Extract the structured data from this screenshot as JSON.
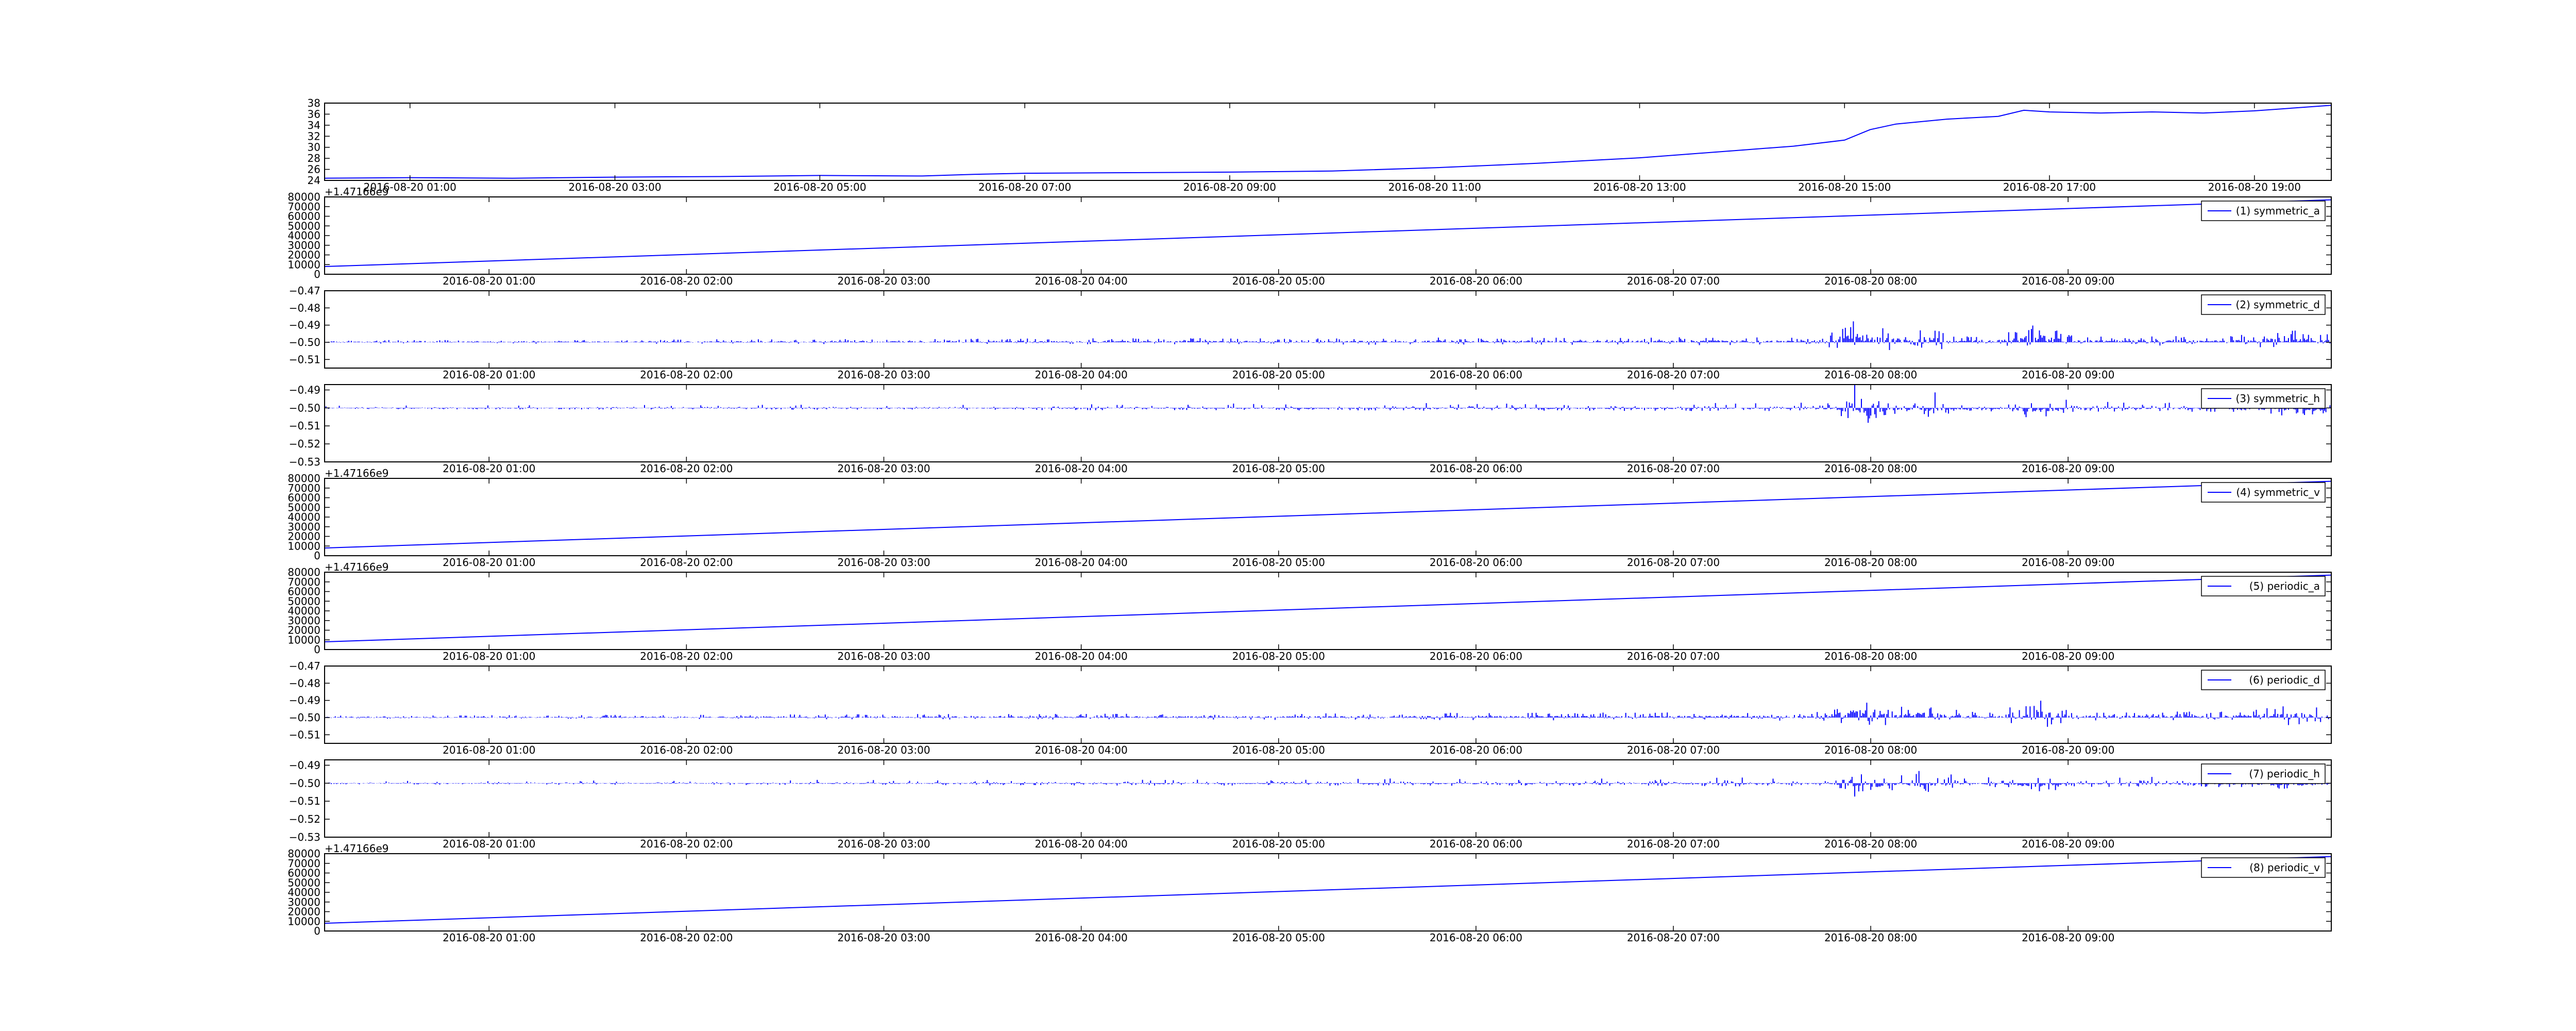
{
  "chart_data": [
    {
      "type": "line",
      "x_range": [
        "2016-08-20 00:10",
        "2016-08-20 19:45"
      ],
      "x_ticks": [
        "2016-08-20 01:00",
        "2016-08-20 03:00",
        "2016-08-20 05:00",
        "2016-08-20 07:00",
        "2016-08-20 09:00",
        "2016-08-20 11:00",
        "2016-08-20 13:00",
        "2016-08-20 15:00",
        "2016-08-20 17:00",
        "2016-08-20 19:00"
      ],
      "ylim": [
        24,
        38
      ],
      "y_ticks": [
        "24",
        "26",
        "28",
        "30",
        "32",
        "34",
        "36",
        "38"
      ],
      "series": [
        {
          "color": "#0000ff",
          "x": [
            "2016-08-20 00:10",
            "2016-08-20 01:00",
            "2016-08-20 02:00",
            "2016-08-20 03:00",
            "2016-08-20 04:00",
            "2016-08-20 05:00",
            "2016-08-20 06:00",
            "2016-08-20 06:30",
            "2016-08-20 07:00",
            "2016-08-20 08:00",
            "2016-08-20 09:00",
            "2016-08-20 10:00",
            "2016-08-20 11:00",
            "2016-08-20 12:00",
            "2016-08-20 12:30",
            "2016-08-20 13:00",
            "2016-08-20 13:30",
            "2016-08-20 14:00",
            "2016-08-20 14:30",
            "2016-08-20 15:00",
            "2016-08-20 15:15",
            "2016-08-20 15:30",
            "2016-08-20 16:00",
            "2016-08-20 16:30",
            "2016-08-20 16:45",
            "2016-08-20 17:00",
            "2016-08-20 17:30",
            "2016-08-20 18:00",
            "2016-08-20 18:30",
            "2016-08-20 19:00",
            "2016-08-20 19:45"
          ],
          "y": [
            24.4,
            24.5,
            24.4,
            24.6,
            24.7,
            24.9,
            24.8,
            25.1,
            25.3,
            25.4,
            25.5,
            25.7,
            26.3,
            27.1,
            27.6,
            28.1,
            28.8,
            29.5,
            30.2,
            31.3,
            33.2,
            34.2,
            35.1,
            35.6,
            36.7,
            36.4,
            36.2,
            36.4,
            36.2,
            36.6,
            37.6
          ]
        }
      ]
    },
    {
      "type": "line",
      "offset_label": "+1.47166e9",
      "ylim": [
        0,
        80000
      ],
      "y_ticks": [
        "0",
        "10000",
        "20000",
        "30000",
        "40000",
        "50000",
        "60000",
        "70000",
        "80000"
      ],
      "x_ticks": [
        "2016-08-20 01:00",
        "2016-08-20 02:00",
        "2016-08-20 03:00",
        "2016-08-20 04:00",
        "2016-08-20 05:00",
        "2016-08-20 06:00",
        "2016-08-20 07:00",
        "2016-08-20 08:00",
        "2016-08-20 09:00"
      ],
      "series": [
        {
          "name": "(1) symmetric_a",
          "color": "#0000ff",
          "y_start": 8000,
          "y_end": 77000
        }
      ]
    },
    {
      "type": "line",
      "ylim": [
        -0.515,
        -0.47
      ],
      "y_ticks": [
        "−0.47",
        "−0.48",
        "−0.49",
        "−0.50",
        "−0.51"
      ],
      "x_ticks": [
        "2016-08-20 01:00",
        "2016-08-20 02:00",
        "2016-08-20 03:00",
        "2016-08-20 04:00",
        "2016-08-20 05:00",
        "2016-08-20 06:00",
        "2016-08-20 07:00",
        "2016-08-20 08:00",
        "2016-08-20 09:00"
      ],
      "series": [
        {
          "name": "(2) symmetric_d",
          "color": "#0000ff",
          "baseline": -0.5,
          "dominant_direction": "up"
        }
      ]
    },
    {
      "type": "line",
      "ylim": [
        -0.53,
        -0.487
      ],
      "y_ticks": [
        "−0.49",
        "−0.50",
        "−0.51",
        "−0.52",
        "−0.53"
      ],
      "x_ticks": [
        "2016-08-20 01:00",
        "2016-08-20 02:00",
        "2016-08-20 03:00",
        "2016-08-20 04:00",
        "2016-08-20 05:00",
        "2016-08-20 06:00",
        "2016-08-20 07:00",
        "2016-08-20 08:00",
        "2016-08-20 09:00"
      ],
      "series": [
        {
          "name": "(3) symmetric_h",
          "color": "#0000ff",
          "baseline": -0.5,
          "dominant_direction": "down"
        }
      ]
    },
    {
      "type": "line",
      "offset_label": "+1.47166e9",
      "ylim": [
        0,
        80000
      ],
      "y_ticks": [
        "0",
        "10000",
        "20000",
        "30000",
        "40000",
        "50000",
        "60000",
        "70000",
        "80000"
      ],
      "x_ticks": [
        "2016-08-20 01:00",
        "2016-08-20 02:00",
        "2016-08-20 03:00",
        "2016-08-20 04:00",
        "2016-08-20 05:00",
        "2016-08-20 06:00",
        "2016-08-20 07:00",
        "2016-08-20 08:00",
        "2016-08-20 09:00"
      ],
      "series": [
        {
          "name": "(4) symmetric_v",
          "color": "#0000ff",
          "y_start": 8000,
          "y_end": 77000
        }
      ]
    },
    {
      "type": "line",
      "offset_label": "+1.47166e9",
      "ylim": [
        0,
        80000
      ],
      "y_ticks": [
        "0",
        "10000",
        "20000",
        "30000",
        "40000",
        "50000",
        "60000",
        "70000",
        "80000"
      ],
      "x_ticks": [
        "2016-08-20 01:00",
        "2016-08-20 02:00",
        "2016-08-20 03:00",
        "2016-08-20 04:00",
        "2016-08-20 05:00",
        "2016-08-20 06:00",
        "2016-08-20 07:00",
        "2016-08-20 08:00",
        "2016-08-20 09:00"
      ],
      "series": [
        {
          "name": "(5) periodic_a",
          "color": "#0000ff",
          "y_start": 8000,
          "y_end": 77000
        }
      ]
    },
    {
      "type": "line",
      "ylim": [
        -0.515,
        -0.47
      ],
      "y_ticks": [
        "−0.47",
        "−0.48",
        "−0.49",
        "−0.50",
        "−0.51"
      ],
      "x_ticks": [
        "2016-08-20 01:00",
        "2016-08-20 02:00",
        "2016-08-20 03:00",
        "2016-08-20 04:00",
        "2016-08-20 05:00",
        "2016-08-20 06:00",
        "2016-08-20 07:00",
        "2016-08-20 08:00",
        "2016-08-20 09:00"
      ],
      "series": [
        {
          "name": "(6) periodic_d",
          "color": "#0000ff",
          "baseline": -0.5,
          "dominant_direction": "up"
        }
      ]
    },
    {
      "type": "line",
      "ylim": [
        -0.53,
        -0.487
      ],
      "y_ticks": [
        "−0.49",
        "−0.50",
        "−0.51",
        "−0.52",
        "−0.53"
      ],
      "x_ticks": [
        "2016-08-20 01:00",
        "2016-08-20 02:00",
        "2016-08-20 03:00",
        "2016-08-20 04:00",
        "2016-08-20 05:00",
        "2016-08-20 06:00",
        "2016-08-20 07:00",
        "2016-08-20 08:00",
        "2016-08-20 09:00"
      ],
      "series": [
        {
          "name": "(7) periodic_h",
          "color": "#0000ff",
          "baseline": -0.5,
          "dominant_direction": "down"
        }
      ]
    },
    {
      "type": "line",
      "offset_label": "+1.47166e9",
      "ylim": [
        0,
        80000
      ],
      "y_ticks": [
        "0",
        "10000",
        "20000",
        "30000",
        "40000",
        "50000",
        "60000",
        "70000",
        "80000"
      ],
      "x_ticks": [
        "2016-08-20 01:00",
        "2016-08-20 02:00",
        "2016-08-20 03:00",
        "2016-08-20 04:00",
        "2016-08-20 05:00",
        "2016-08-20 06:00",
        "2016-08-20 07:00",
        "2016-08-20 08:00",
        "2016-08-20 09:00"
      ],
      "series": [
        {
          "name": "(8) periodic_v",
          "color": "#0000ff",
          "y_start": 8000,
          "y_end": 77000
        }
      ]
    }
  ]
}
